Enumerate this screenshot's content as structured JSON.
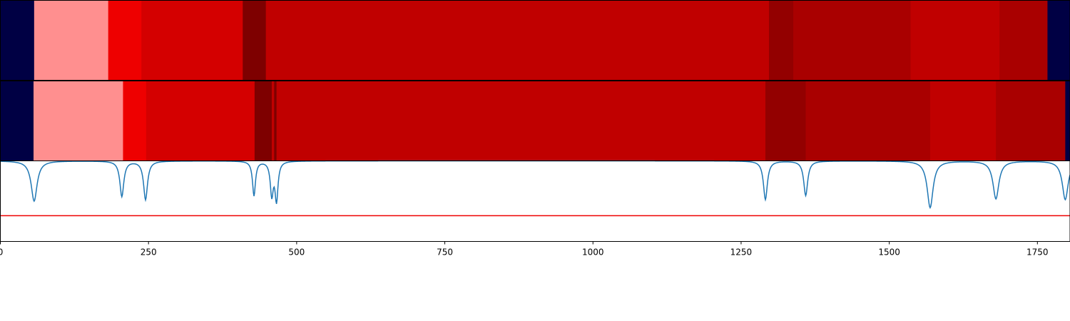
{
  "chart_data": {
    "type": "heatmap",
    "x_range": [
      0,
      1805
    ],
    "x_ticks": [
      0,
      250,
      500,
      750,
      1000,
      1250,
      1500,
      1750
    ],
    "tracks": [
      {
        "segments": [
          {
            "start": 0,
            "end": 57,
            "color": "#000044"
          },
          {
            "start": 57,
            "end": 182,
            "color": "#ff8f8f"
          },
          {
            "start": 182,
            "end": 238,
            "color": "#ee0000"
          },
          {
            "start": 238,
            "end": 409,
            "color": "#d40000"
          },
          {
            "start": 409,
            "end": 448,
            "color": "#7e0000"
          },
          {
            "start": 448,
            "end": 1297,
            "color": "#c00000"
          },
          {
            "start": 1297,
            "end": 1338,
            "color": "#930000"
          },
          {
            "start": 1338,
            "end": 1536,
            "color": "#a90000"
          },
          {
            "start": 1536,
            "end": 1686,
            "color": "#c00000"
          },
          {
            "start": 1686,
            "end": 1767,
            "color": "#a90000"
          },
          {
            "start": 1767,
            "end": 1805,
            "color": "#000044"
          }
        ]
      },
      {
        "segments": [
          {
            "start": 0,
            "end": 56,
            "color": "#000044"
          },
          {
            "start": 56,
            "end": 207,
            "color": "#ff8f8f"
          },
          {
            "start": 207,
            "end": 246,
            "color": "#ee0000"
          },
          {
            "start": 246,
            "end": 429,
            "color": "#d40000"
          },
          {
            "start": 429,
            "end": 458,
            "color": "#7e0000"
          },
          {
            "start": 458,
            "end": 462,
            "color": "#c00000"
          },
          {
            "start": 462,
            "end": 466,
            "color": "#7e0000"
          },
          {
            "start": 466,
            "end": 1291,
            "color": "#c00000"
          },
          {
            "start": 1291,
            "end": 1359,
            "color": "#930000"
          },
          {
            "start": 1359,
            "end": 1569,
            "color": "#a90000"
          },
          {
            "start": 1569,
            "end": 1680,
            "color": "#c00000"
          },
          {
            "start": 1680,
            "end": 1797,
            "color": "#a90000"
          },
          {
            "start": 1797,
            "end": 1805,
            "color": "#000044"
          }
        ]
      }
    ],
    "line": {
      "color": "#1f77b4",
      "baseline": 1.0,
      "ylim": [
        0,
        1.0
      ],
      "dips": [
        {
          "center": 57,
          "depth": 0.5,
          "width": 6
        },
        {
          "center": 205,
          "depth": 0.44,
          "width": 4
        },
        {
          "center": 245,
          "depth": 0.48,
          "width": 4
        },
        {
          "center": 428,
          "depth": 0.43,
          "width": 3
        },
        {
          "center": 458,
          "depth": 0.41,
          "width": 3
        },
        {
          "center": 466,
          "depth": 0.48,
          "width": 3
        },
        {
          "center": 1291,
          "depth": 0.48,
          "width": 4
        },
        {
          "center": 1359,
          "depth": 0.43,
          "width": 4
        },
        {
          "center": 1569,
          "depth": 0.58,
          "width": 6
        },
        {
          "center": 1680,
          "depth": 0.47,
          "width": 6
        },
        {
          "center": 1797,
          "depth": 0.48,
          "width": 6
        }
      ]
    },
    "threshold": {
      "value": 0.32,
      "color": "#ee0000"
    }
  }
}
